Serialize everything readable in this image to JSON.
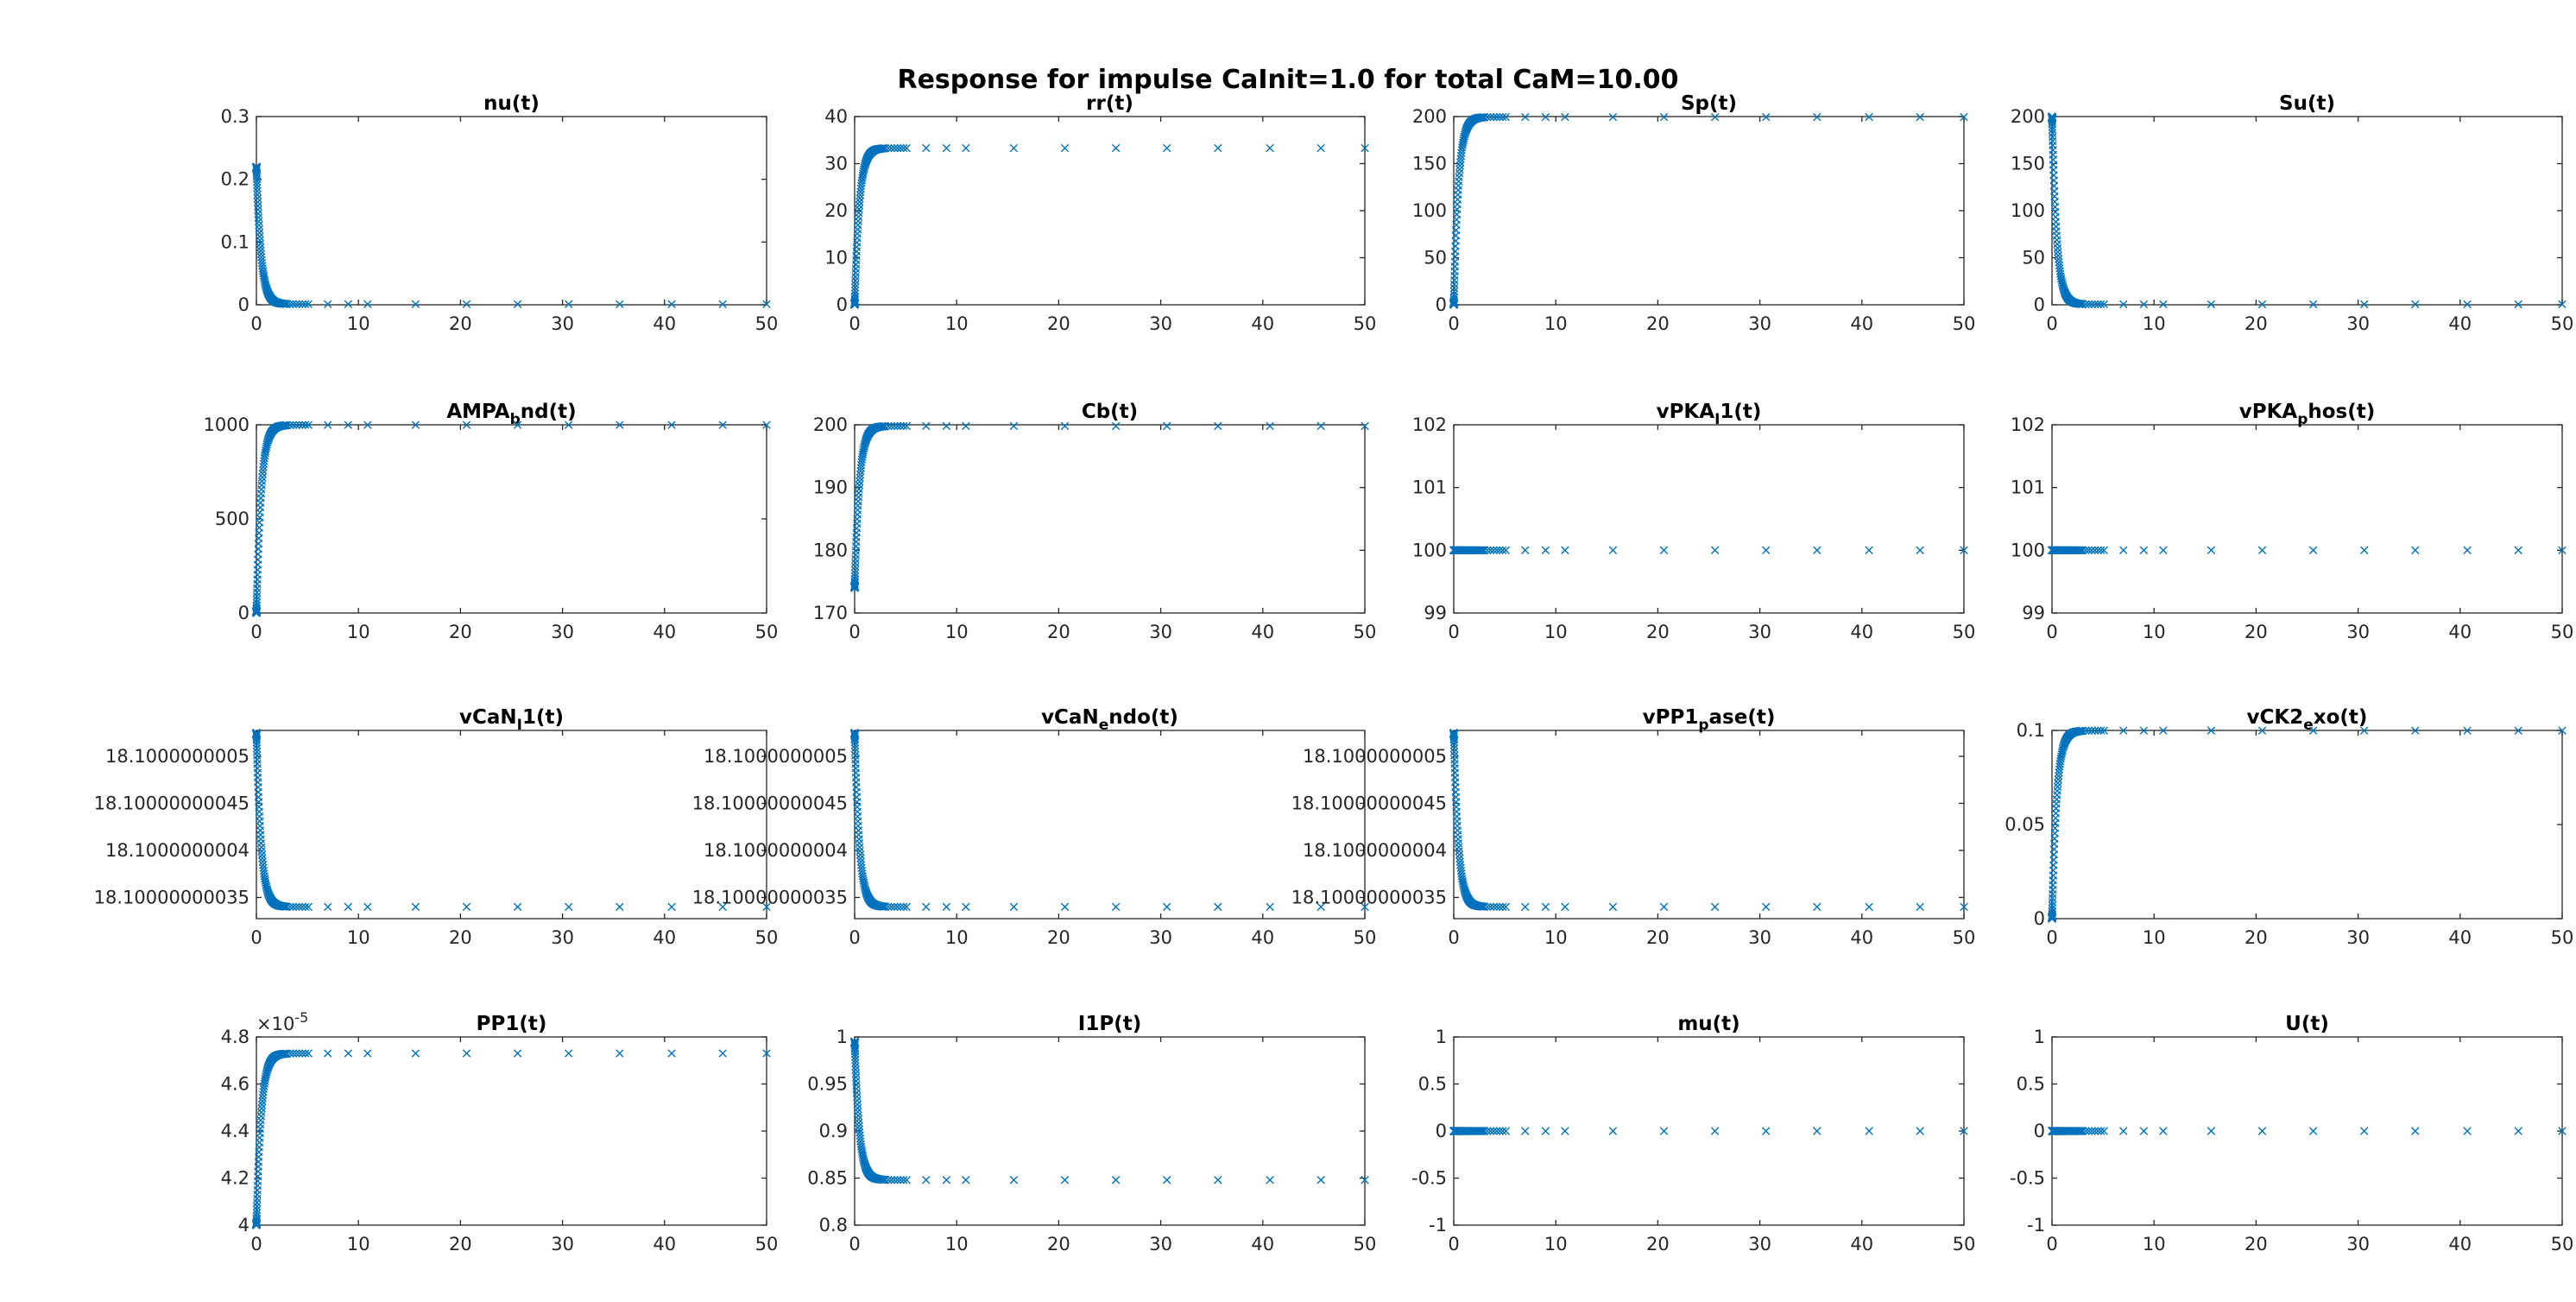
{
  "figure": {
    "title": "Response for impulse CaInit=1.0 for total CaM=10.00",
    "marker_color": "#0072BD",
    "marker": "x"
  },
  "chart_data": [
    {
      "type": "scatter",
      "title": "nu(t)",
      "xlim": [
        0,
        50
      ],
      "ylim": [
        0,
        0.3
      ],
      "xticks": [
        0,
        10,
        20,
        30,
        40,
        50
      ],
      "yticks": [
        0,
        0.1,
        0.2,
        0.3
      ],
      "xtick_labels": [
        "0",
        "10",
        "20",
        "30",
        "40",
        "50"
      ],
      "ytick_labels": [
        "0",
        "0.1",
        "0.2",
        "0.3"
      ],
      "shape": "decay",
      "start": 0.22,
      "end": 0.001
    },
    {
      "type": "scatter",
      "title": "rr(t)",
      "xlim": [
        0,
        50
      ],
      "ylim": [
        0,
        40
      ],
      "xticks": [
        0,
        10,
        20,
        30,
        40,
        50
      ],
      "yticks": [
        0,
        10,
        20,
        30,
        40
      ],
      "xtick_labels": [
        "0",
        "10",
        "20",
        "30",
        "40",
        "50"
      ],
      "ytick_labels": [
        "0",
        "10",
        "20",
        "30",
        "40"
      ],
      "shape": "rise",
      "start": 0,
      "end": 33.3
    },
    {
      "type": "scatter",
      "title": "Sp(t)",
      "xlim": [
        0,
        50
      ],
      "ylim": [
        0,
        200
      ],
      "xticks": [
        0,
        10,
        20,
        30,
        40,
        50
      ],
      "yticks": [
        0,
        50,
        100,
        150,
        200
      ],
      "xtick_labels": [
        "0",
        "10",
        "20",
        "30",
        "40",
        "50"
      ],
      "ytick_labels": [
        "0",
        "50",
        "100",
        "150",
        "200"
      ],
      "shape": "rise",
      "start": 0,
      "end": 199.5
    },
    {
      "type": "scatter",
      "title": "Su(t)",
      "xlim": [
        0,
        50
      ],
      "ylim": [
        0,
        200
      ],
      "xticks": [
        0,
        10,
        20,
        30,
        40,
        50
      ],
      "yticks": [
        0,
        50,
        100,
        150,
        200
      ],
      "xtick_labels": [
        "0",
        "10",
        "20",
        "30",
        "40",
        "50"
      ],
      "ytick_labels": [
        "0",
        "50",
        "100",
        "150",
        "200"
      ],
      "shape": "decay",
      "start": 200,
      "end": 0.5
    },
    {
      "type": "scatter",
      "title": "AMPA_bnd(t)",
      "xlim": [
        0,
        50
      ],
      "ylim": [
        0,
        1000
      ],
      "xticks": [
        0,
        10,
        20,
        30,
        40,
        50
      ],
      "yticks": [
        0,
        500,
        1000
      ],
      "xtick_labels": [
        "0",
        "10",
        "20",
        "30",
        "40",
        "50"
      ],
      "ytick_labels": [
        "0",
        "500",
        "1000"
      ],
      "shape": "rise",
      "start": 0,
      "end": 999
    },
    {
      "type": "scatter",
      "title": "Cb(t)",
      "xlim": [
        0,
        50
      ],
      "ylim": [
        170,
        200
      ],
      "xticks": [
        0,
        10,
        20,
        30,
        40,
        50
      ],
      "yticks": [
        170,
        180,
        190,
        200
      ],
      "xtick_labels": [
        "0",
        "10",
        "20",
        "30",
        "40",
        "50"
      ],
      "ytick_labels": [
        "170",
        "180",
        "190",
        "200"
      ],
      "shape": "rise",
      "start": 174,
      "end": 199.8
    },
    {
      "type": "scatter",
      "title": "vPKA_I1(t)",
      "xlim": [
        0,
        50
      ],
      "ylim": [
        99,
        102
      ],
      "xticks": [
        0,
        10,
        20,
        30,
        40,
        50
      ],
      "yticks": [
        99,
        100,
        101,
        102
      ],
      "xtick_labels": [
        "0",
        "10",
        "20",
        "30",
        "40",
        "50"
      ],
      "ytick_labels": [
        "99",
        "100",
        "101",
        "102"
      ],
      "shape": "flat",
      "start": 100,
      "end": 100
    },
    {
      "type": "scatter",
      "title": "vPKA_phos(t)",
      "xlim": [
        0,
        50
      ],
      "ylim": [
        99,
        102
      ],
      "xticks": [
        0,
        10,
        20,
        30,
        40,
        50
      ],
      "yticks": [
        99,
        100,
        101,
        102
      ],
      "xtick_labels": [
        "0",
        "10",
        "20",
        "30",
        "40",
        "50"
      ],
      "ytick_labels": [
        "99",
        "100",
        "101",
        "102"
      ],
      "shape": "flat",
      "start": 100,
      "end": 100
    },
    {
      "type": "scatter",
      "title": "vCaN_I1(t)",
      "xlim": [
        0,
        50
      ],
      "ylim": [
        18.1000000003275,
        18.1000000005275
      ],
      "xticks": [
        0,
        10,
        20,
        30,
        40,
        50
      ],
      "yticks": [
        18.10000000035,
        18.1000000004,
        18.10000000045,
        18.1000000005
      ],
      "xtick_labels": [
        "0",
        "10",
        "20",
        "30",
        "40",
        "50"
      ],
      "ytick_labels": [
        "18.10000000035",
        "18.1000000004",
        "18.10000000045",
        "18.1000000005"
      ],
      "shape": "decay",
      "start": 18.100000000525,
      "end": 18.10000000034
    },
    {
      "type": "scatter",
      "title": "vCaN_endo(t)",
      "xlim": [
        0,
        50
      ],
      "ylim": [
        18.1000000003275,
        18.1000000005275
      ],
      "xticks": [
        0,
        10,
        20,
        30,
        40,
        50
      ],
      "yticks": [
        18.10000000035,
        18.1000000004,
        18.10000000045,
        18.1000000005
      ],
      "xtick_labels": [
        "0",
        "10",
        "20",
        "30",
        "40",
        "50"
      ],
      "ytick_labels": [
        "18.10000000035",
        "18.1000000004",
        "18.10000000045",
        "18.1000000005"
      ],
      "shape": "decay",
      "start": 18.100000000525,
      "end": 18.10000000034
    },
    {
      "type": "scatter",
      "title": "vPP1_pase(t)",
      "xlim": [
        0,
        50
      ],
      "ylim": [
        18.1000000003275,
        18.1000000005275
      ],
      "xticks": [
        0,
        10,
        20,
        30,
        40,
        50
      ],
      "yticks": [
        18.10000000035,
        18.1000000004,
        18.10000000045,
        18.1000000005
      ],
      "xtick_labels": [
        "0",
        "10",
        "20",
        "30",
        "40",
        "50"
      ],
      "ytick_labels": [
        "18.10000000035",
        "18.1000000004",
        "18.10000000045",
        "18.1000000005"
      ],
      "shape": "decay",
      "start": 18.100000000525,
      "end": 18.10000000034
    },
    {
      "type": "scatter",
      "title": "vCK2_exo(t)",
      "xlim": [
        0,
        50
      ],
      "ylim": [
        0,
        0.1
      ],
      "xticks": [
        0,
        10,
        20,
        30,
        40,
        50
      ],
      "yticks": [
        0,
        0.05,
        0.1
      ],
      "xtick_labels": [
        "0",
        "10",
        "20",
        "30",
        "40",
        "50"
      ],
      "ytick_labels": [
        "0",
        "0.05",
        "0.1"
      ],
      "shape": "rise",
      "start": 0,
      "end": 0.0999
    },
    {
      "type": "scatter",
      "title": "PP1(t)",
      "xlim": [
        0,
        50
      ],
      "ylim": [
        4e-05,
        4.8e-05
      ],
      "xticks": [
        0,
        10,
        20,
        30,
        40,
        50
      ],
      "yticks": [
        4e-05,
        4.2e-05,
        4.4e-05,
        4.6e-05,
        4.8e-05
      ],
      "xtick_labels": [
        "0",
        "10",
        "20",
        "30",
        "40",
        "50"
      ],
      "ytick_labels": [
        "4",
        "4.2",
        "4.4",
        "4.6",
        "4.8"
      ],
      "y_exponent": "×10",
      "y_exponent_power": "-5",
      "shape": "rise",
      "start": 4e-05,
      "end": 4.73e-05
    },
    {
      "type": "scatter",
      "title": "I1P(t)",
      "xlim": [
        0,
        50
      ],
      "ylim": [
        0.8,
        1
      ],
      "xticks": [
        0,
        10,
        20,
        30,
        40,
        50
      ],
      "yticks": [
        0.8,
        0.85,
        0.9,
        0.95,
        1
      ],
      "xtick_labels": [
        "0",
        "10",
        "20",
        "30",
        "40",
        "50"
      ],
      "ytick_labels": [
        "0.8",
        "0.85",
        "0.9",
        "0.95",
        "1"
      ],
      "shape": "decay",
      "start": 0.995,
      "end": 0.848
    },
    {
      "type": "scatter",
      "title": "mu(t)",
      "xlim": [
        0,
        50
      ],
      "ylim": [
        -1,
        1
      ],
      "xticks": [
        0,
        10,
        20,
        30,
        40,
        50
      ],
      "yticks": [
        -1,
        -0.5,
        0,
        0.5,
        1
      ],
      "xtick_labels": [
        "0",
        "10",
        "20",
        "30",
        "40",
        "50"
      ],
      "ytick_labels": [
        "-1",
        "-0.5",
        "0",
        "0.5",
        "1"
      ],
      "shape": "flat",
      "start": 0,
      "end": 0
    },
    {
      "type": "scatter",
      "title": "U(t)",
      "xlim": [
        0,
        50
      ],
      "ylim": [
        -1,
        1
      ],
      "xticks": [
        0,
        10,
        20,
        30,
        40,
        50
      ],
      "yticks": [
        -1,
        -0.5,
        0,
        0.5,
        1
      ],
      "xtick_labels": [
        "0",
        "10",
        "20",
        "30",
        "40",
        "50"
      ],
      "ytick_labels": [
        "-1",
        "-0.5",
        "0",
        "0.5",
        "1"
      ],
      "shape": "flat",
      "start": 0,
      "end": 0
    }
  ]
}
